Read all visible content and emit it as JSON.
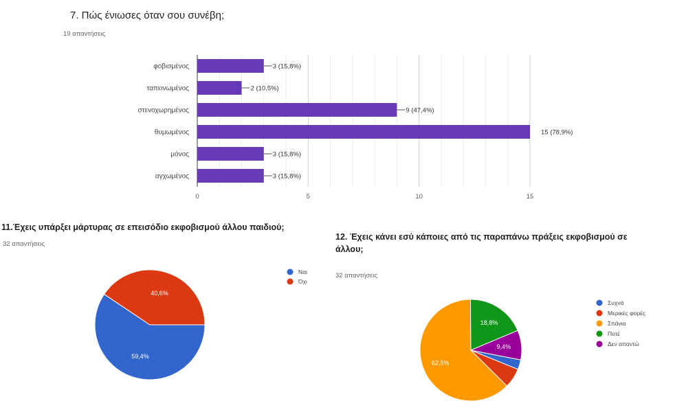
{
  "q7": {
    "title": "7.    Πώς ένιωσες όταν σου συνέβη;",
    "responses": "19 απαντήσεις"
  },
  "q11": {
    "title": "11.Έχεις υπάρξει μάρτυρας σε επεισόδιο εκφοβισμού άλλου παιδιού;",
    "responses": "32 απαντήσεις"
  },
  "q12": {
    "title_line1": "12.   Έχεις κάνει εσύ κάποιες από τις παραπάνω πράξεις εκφοβισμού σε",
    "title_line2": "άλλου;",
    "responses": "32 απαντήσεις"
  },
  "chart_data": [
    {
      "type": "bar",
      "orientation": "horizontal",
      "categories": [
        "φοβισμένος",
        "ταπεινωμένος",
        "στενοχωρημένος",
        "θυμωμένος",
        "μόνος",
        "αγχωμένος"
      ],
      "values": [
        3,
        2,
        9,
        15,
        3,
        3
      ],
      "value_labels": [
        "3 (15,8%)",
        "2 (10,5%)",
        "9 (47,4%)",
        "15 (78,9%)",
        "3 (15,8%)",
        "3 (15,8%)"
      ],
      "xlim": [
        0,
        15
      ],
      "xticks": [
        0,
        5,
        10,
        15
      ],
      "bar_color": "#673ab7",
      "grid": true
    },
    {
      "type": "pie",
      "labels": [
        "Ναι",
        "Όχι"
      ],
      "values": [
        59.4,
        40.6
      ],
      "slice_labels": [
        "59,4%",
        "40,6%"
      ],
      "colors": [
        "#3366cc",
        "#dc3912"
      ],
      "legend_position": "right"
    },
    {
      "type": "pie",
      "labels": [
        "Συχνά",
        "Μερικές φορές",
        "Σπάνια",
        "Ποτέ",
        "Δεν απαντώ"
      ],
      "values": [
        3.1,
        6.3,
        62.5,
        18.8,
        9.4
      ],
      "slice_labels": [
        "",
        "",
        "62,5%",
        "18,8%",
        "9,4%"
      ],
      "colors": [
        "#3366cc",
        "#dc3912",
        "#ff9900",
        "#109618",
        "#990099"
      ],
      "legend_position": "right"
    }
  ]
}
